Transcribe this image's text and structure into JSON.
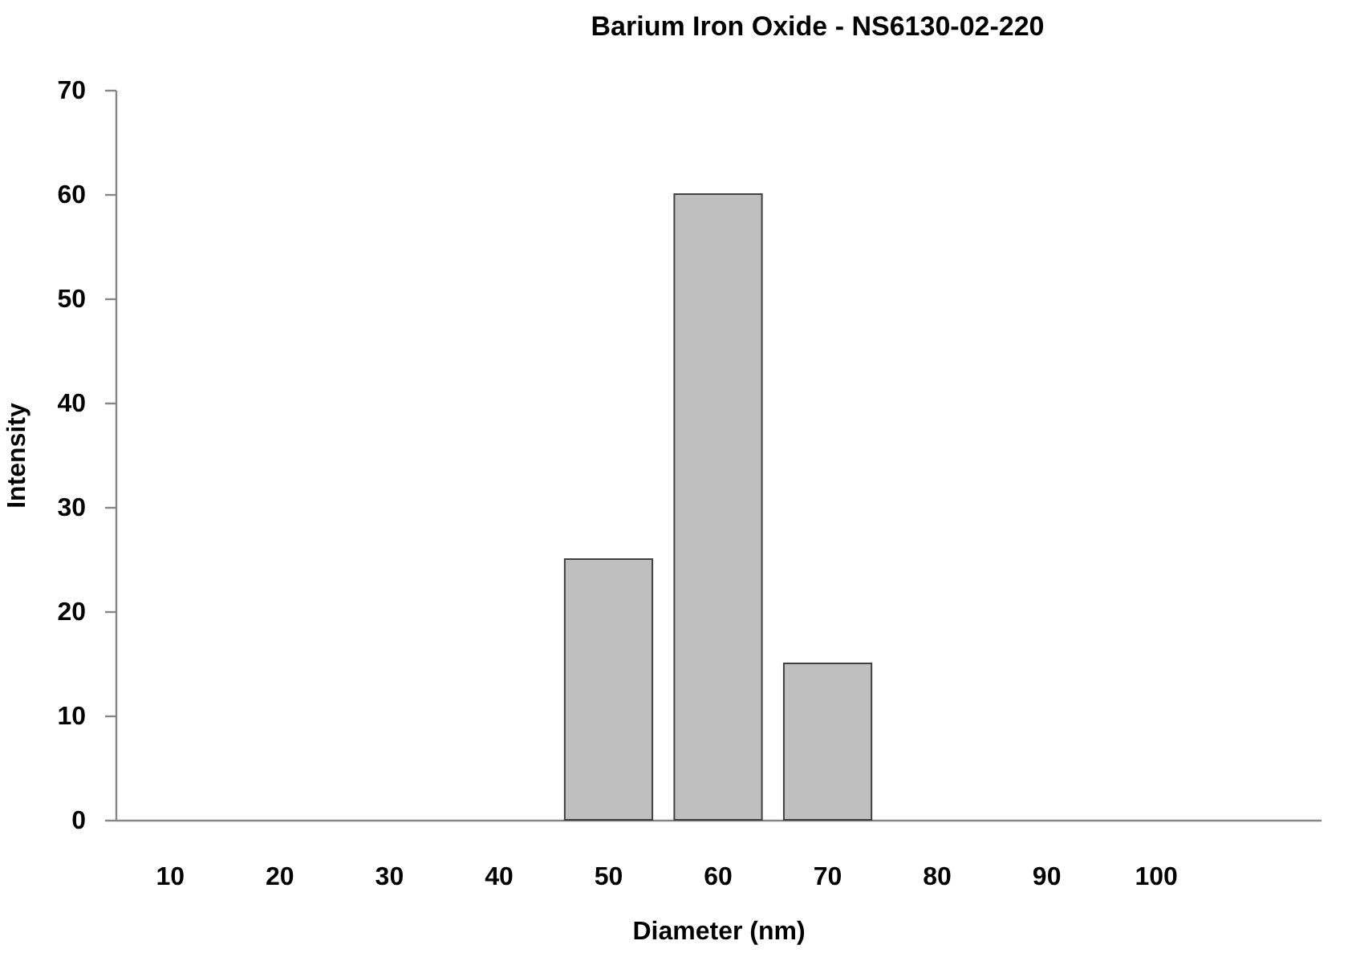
{
  "chart_data": {
    "type": "bar",
    "title": "Barium Iron Oxide - NS6130-02-220",
    "xlabel": "Diameter (nm)",
    "ylabel": "Intensity",
    "categories": [
      "10",
      "20",
      "30",
      "40",
      "50",
      "60",
      "70",
      "80",
      "90",
      "100",
      null
    ],
    "values": [
      0,
      0,
      0,
      0,
      25,
      60,
      15,
      0,
      0,
      0,
      null
    ],
    "color": "#bfbfbf",
    "ylim": [
      0,
      70
    ],
    "yticks": [
      0,
      10,
      20,
      30,
      40,
      50,
      60,
      70
    ]
  }
}
